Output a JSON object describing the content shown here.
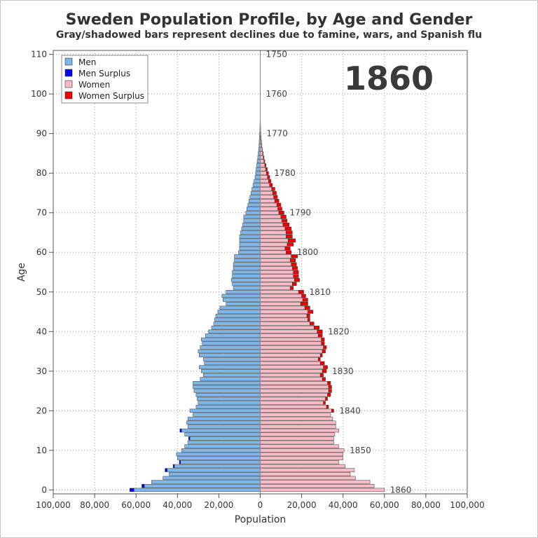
{
  "chart_data": {
    "type": "bar",
    "orientation": "horizontal-population-pyramid",
    "title": "Sweden Population Profile, by Age and Gender",
    "subtitle": "Gray/shadowed bars represent declines due to famine, wars, and Spanish flu",
    "xlabel": "Population",
    "ylabel": "Age",
    "xlim": [
      -100000,
      100000
    ],
    "ylim": [
      -1,
      111
    ],
    "x_ticks": [
      -100000,
      -80000,
      -60000,
      -40000,
      -20000,
      0,
      20000,
      40000,
      60000,
      80000,
      100000
    ],
    "x_tick_labels": [
      "100,000",
      "80,000",
      "60,000",
      "40,000",
      "20,000",
      "0",
      "20,000",
      "40,000",
      "60,000",
      "80,000",
      "100,000"
    ],
    "y_ticks": [
      0,
      10,
      20,
      30,
      40,
      50,
      60,
      70,
      80,
      90,
      100,
      110
    ],
    "y_tick_labels": [
      "0",
      "10",
      "20",
      "30",
      "40",
      "50",
      "60",
      "70",
      "80",
      "90",
      "100",
      "110"
    ],
    "grid": true,
    "year": "1860",
    "legend": {
      "position": "top-left",
      "entries": [
        {
          "label": "Men",
          "color": "#7eb6ea"
        },
        {
          "label": "Men Surplus",
          "color": "#0000ee"
        },
        {
          "label": "Women",
          "color": "#f9bcc6"
        },
        {
          "label": "Women Surplus",
          "color": "#ee0000"
        }
      ]
    },
    "cohort_labels": [
      {
        "age": 0,
        "label": "1860"
      },
      {
        "age": 10,
        "label": "1850"
      },
      {
        "age": 20,
        "label": "1840"
      },
      {
        "age": 30,
        "label": "1830"
      },
      {
        "age": 40,
        "label": "1820"
      },
      {
        "age": 50,
        "label": "1810"
      },
      {
        "age": 60,
        "label": "1800"
      },
      {
        "age": 70,
        "label": "1790"
      },
      {
        "age": 80,
        "label": "1780"
      },
      {
        "age": 90,
        "label": "1770"
      },
      {
        "age": 100,
        "label": "1760"
      },
      {
        "age": 110,
        "label": "1750"
      }
    ],
    "ages": [
      0,
      1,
      2,
      3,
      4,
      5,
      6,
      7,
      8,
      9,
      10,
      11,
      12,
      13,
      14,
      15,
      16,
      17,
      18,
      19,
      20,
      21,
      22,
      23,
      24,
      25,
      26,
      27,
      28,
      29,
      30,
      31,
      32,
      33,
      34,
      35,
      36,
      37,
      38,
      39,
      40,
      41,
      42,
      43,
      44,
      45,
      46,
      47,
      48,
      49,
      50,
      51,
      52,
      53,
      54,
      55,
      56,
      57,
      58,
      59,
      60,
      61,
      62,
      63,
      64,
      65,
      66,
      67,
      68,
      69,
      70,
      71,
      72,
      73,
      74,
      75,
      76,
      77,
      78,
      79,
      80,
      81,
      82,
      83,
      84,
      85,
      86,
      87,
      88,
      89,
      90,
      91,
      92,
      93,
      94,
      95
    ],
    "series": [
      {
        "name": "Men",
        "values": [
          61000,
          56000,
          52500,
          47000,
          44000,
          45000,
          41500,
          38500,
          40000,
          40500,
          38000,
          36500,
          35000,
          34000,
          36500,
          38000,
          35000,
          35500,
          35000,
          32500,
          34000,
          31000,
          30000,
          30500,
          31000,
          32000,
          32500,
          32500,
          29000,
          27500,
          28500,
          29500,
          27000,
          27500,
          29500,
          30000,
          29000,
          28000,
          28500,
          26500,
          25000,
          23500,
          22500,
          22000,
          21500,
          20500,
          19500,
          16500,
          18000,
          18500,
          16500,
          13000,
          13500,
          14000,
          13500,
          13500,
          13000,
          13000,
          12500,
          12500,
          10500,
          10000,
          10000,
          10000,
          10000,
          9500,
          9000,
          8500,
          8000,
          8000,
          7000,
          6500,
          6000,
          5500,
          5000,
          4500,
          4000,
          3500,
          3000,
          2500,
          2200,
          2000,
          1700,
          1500,
          1200,
          1000,
          800,
          600,
          500,
          400,
          300,
          200,
          150,
          100,
          50,
          30
        ]
      },
      {
        "name": "Women",
        "values": [
          60000,
          55000,
          53000,
          46000,
          43500,
          45500,
          41000,
          38000,
          40000,
          40000,
          40500,
          38000,
          35500,
          35500,
          36000,
          38000,
          36500,
          36500,
          35000,
          34000,
          34500,
          32000,
          30500,
          31500,
          32500,
          33000,
          33000,
          32500,
          30000,
          29000,
          30000,
          30500,
          29000,
          28000,
          29000,
          30000,
          30500,
          29500,
          29500,
          28000,
          27500,
          26000,
          24000,
          23000,
          22500,
          23000,
          21500,
          19500,
          20500,
          20000,
          18500,
          14500,
          15500,
          16500,
          16000,
          16000,
          15500,
          15000,
          14500,
          15000,
          12500,
          12000,
          13000,
          13500,
          12500,
          12500,
          12000,
          11000,
          10500,
          10000,
          9000,
          8500,
          8000,
          7000,
          6500,
          6000,
          5500,
          4500,
          4000,
          3500,
          3000,
          2600,
          2200,
          1800,
          1500,
          1200,
          900,
          700,
          500,
          400,
          300,
          200,
          150,
          100,
          60,
          40
        ]
      },
      {
        "name": "Men Surplus",
        "values": [
          2000,
          1200,
          0,
          0,
          0,
          1000,
          600,
          600,
          0,
          0,
          0,
          0,
          0,
          600,
          0,
          800,
          0,
          0,
          0,
          0,
          0,
          0,
          0,
          0,
          0,
          0,
          0,
          0,
          0,
          0,
          0,
          0,
          0,
          0,
          0,
          0,
          0,
          0,
          0,
          0,
          0,
          0,
          0,
          0,
          0,
          0,
          0,
          0,
          0,
          0,
          0,
          0,
          0,
          0,
          0,
          0,
          0,
          0,
          0,
          0,
          0,
          0,
          0,
          0,
          0,
          0,
          0,
          0,
          0,
          0,
          0,
          0,
          0,
          0,
          0,
          0,
          0,
          0,
          0,
          0,
          0,
          0,
          0,
          0,
          0,
          0,
          0,
          0,
          0,
          0,
          0,
          0,
          0,
          0,
          0,
          0
        ]
      },
      {
        "name": "Women Surplus",
        "values": [
          0,
          0,
          0,
          0,
          0,
          0,
          0,
          0,
          0,
          0,
          0,
          0,
          0,
          0,
          0,
          0,
          0,
          0,
          0,
          0,
          1000,
          1000,
          1000,
          1000,
          1500,
          1500,
          1500,
          1500,
          1500,
          1500,
          2000,
          2000,
          2000,
          1000,
          1000,
          1500,
          1500,
          1500,
          1500,
          2000,
          2500,
          2500,
          2000,
          1000,
          1500,
          2500,
          2500,
          3500,
          2500,
          2000,
          2500,
          1500,
          2000,
          2500,
          2500,
          2500,
          2500,
          2500,
          2500,
          3000,
          2500,
          2500,
          3000,
          3500,
          3000,
          3000,
          3000,
          3000,
          2500,
          2500,
          2500,
          2000,
          2000,
          2000,
          1800,
          1800,
          1600,
          1400,
          1200,
          1100,
          1000,
          800,
          600,
          400,
          300,
          200,
          120,
          80,
          60,
          40,
          0,
          0,
          0,
          0,
          0,
          0
        ]
      }
    ]
  }
}
